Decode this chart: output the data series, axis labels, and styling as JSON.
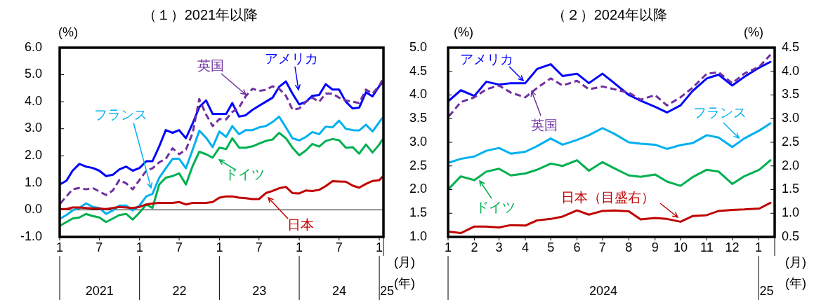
{
  "chart_data": [
    {
      "type": "line",
      "title": "（１）2021年以降",
      "ylabel": "(%)",
      "xlabel": "(月)",
      "x": [
        "2021-01-04",
        "2021-02-01",
        "2021-03-01",
        "2021-04-01",
        "2021-05-01",
        "2021-06-01",
        "2021-07-01",
        "2021-08-01",
        "2021-09-01",
        "2021-10-01",
        "2021-11-01",
        "2021-12-01",
        "2022-01-01",
        "2022-02-01",
        "2022-03-01",
        "2022-04-01",
        "2022-05-01",
        "2022-06-01",
        "2022-07-01",
        "2022-08-01",
        "2022-09-01",
        "2022-10-01",
        "2022-11-01",
        "2022-12-01",
        "2023-01-01",
        "2023-02-01",
        "2023-03-01",
        "2023-04-01",
        "2023-05-01",
        "2023-06-01",
        "2023-07-01",
        "2023-08-01",
        "2023-09-01",
        "2023-10-01",
        "2023-11-01",
        "2023-12-01",
        "2024-01-01",
        "2024-02-01",
        "2024-03-01",
        "2024-04-01",
        "2024-05-01",
        "2024-06-01",
        "2024-07-01",
        "2024-08-01",
        "2024-09-01",
        "2024-10-01",
        "2024-11-01",
        "2024-12-01",
        "2025-01-01",
        "2025-01-15"
      ],
      "xlim": [
        "2021-01-01",
        "2025-01-20"
      ],
      "xticks": [
        {
          "value": "2021-01-01",
          "label": "1"
        },
        {
          "value": "2021-07-01",
          "label": "7"
        },
        {
          "value": "2022-01-01",
          "label": "1"
        },
        {
          "value": "2022-07-01",
          "label": "7"
        },
        {
          "value": "2023-01-01",
          "label": "1"
        },
        {
          "value": "2023-07-01",
          "label": "7"
        },
        {
          "value": "2024-01-01",
          "label": "1"
        },
        {
          "value": "2024-07-01",
          "label": "7"
        },
        {
          "value": "2025-01-01",
          "label": "1"
        }
      ],
      "ylim": [
        -1,
        6
      ],
      "yticks": [
        {
          "value": -1,
          "label": "-1.0"
        },
        {
          "value": 0,
          "label": "0.0"
        },
        {
          "value": 1,
          "label": "1.0"
        },
        {
          "value": 2,
          "label": "2.0"
        },
        {
          "value": 3,
          "label": "3.0"
        },
        {
          "value": 4,
          "label": "4.0"
        },
        {
          "value": 5,
          "label": "5.0"
        },
        {
          "value": 6,
          "label": "6.0"
        }
      ],
      "ref_lines": [
        {
          "axis": "y",
          "value": 0,
          "color": "#000000"
        }
      ],
      "series": [
        {
          "name": "アメリカ",
          "color": "#0000ff",
          "values": [
            0.95,
            1.08,
            1.45,
            1.7,
            1.6,
            1.55,
            1.45,
            1.25,
            1.3,
            1.5,
            1.6,
            1.45,
            1.55,
            1.8,
            1.8,
            2.35,
            2.95,
            2.85,
            2.95,
            2.65,
            3.2,
            3.8,
            4.05,
            3.55,
            3.55,
            3.55,
            3.95,
            3.45,
            3.5,
            3.7,
            3.85,
            4.0,
            4.15,
            4.55,
            4.75,
            4.3,
            3.9,
            4.0,
            4.22,
            4.25,
            4.65,
            4.45,
            4.45,
            4.0,
            3.75,
            3.78,
            4.35,
            4.2,
            4.58,
            4.7
          ]
        },
        {
          "name": "英国",
          "color": "#7030a0",
          "line_style": "dashed",
          "values": [
            0.24,
            0.5,
            0.76,
            0.81,
            0.76,
            0.81,
            0.68,
            0.55,
            0.72,
            1.11,
            0.98,
            0.76,
            1.11,
            1.45,
            1.54,
            1.76,
            1.89,
            2.28,
            2.06,
            2.23,
            2.85,
            4.1,
            3.53,
            3.1,
            3.36,
            3.35,
            3.62,
            3.79,
            4.2,
            4.48,
            4.4,
            4.44,
            4.57,
            4.48,
            4.22,
            3.71,
            3.75,
            4.0,
            4.15,
            4.0,
            4.3,
            4.3,
            4.15,
            4.05,
            4.0,
            3.95,
            4.45,
            4.3,
            4.6,
            4.8
          ]
        },
        {
          "name": "フランス",
          "color": "#00b0f0",
          "values": [
            -0.32,
            -0.19,
            -0.02,
            0.07,
            0.24,
            0.11,
            0.07,
            -0.15,
            -0.02,
            0.16,
            0.16,
            -0.02,
            0.16,
            0.5,
            0.59,
            1.19,
            1.54,
            1.89,
            1.89,
            1.54,
            2.23,
            2.93,
            2.67,
            2.32,
            2.9,
            2.7,
            3.1,
            2.8,
            2.95,
            2.95,
            3.05,
            3.1,
            3.25,
            3.45,
            3.05,
            2.65,
            2.57,
            2.7,
            2.88,
            2.8,
            3.08,
            3.05,
            3.3,
            3.0,
            2.95,
            2.94,
            3.15,
            2.9,
            3.25,
            3.4
          ]
        },
        {
          "name": "ドイツ",
          "color": "#00b050",
          "values": [
            -0.58,
            -0.45,
            -0.32,
            -0.28,
            -0.15,
            -0.23,
            -0.28,
            -0.45,
            -0.32,
            -0.19,
            -0.15,
            -0.36,
            -0.1,
            0.2,
            0.07,
            0.94,
            1.19,
            1.25,
            1.35,
            0.94,
            1.63,
            2.15,
            2.06,
            1.93,
            2.3,
            2.25,
            2.65,
            2.3,
            2.3,
            2.35,
            2.45,
            2.55,
            2.6,
            2.85,
            2.65,
            2.3,
            2.02,
            2.2,
            2.44,
            2.34,
            2.55,
            2.62,
            2.58,
            2.3,
            2.32,
            2.08,
            2.42,
            2.12,
            2.42,
            2.6
          ]
        },
        {
          "name": "日本",
          "color": "#c00000",
          "values": [
            0.03,
            0.03,
            0.09,
            0.09,
            0.07,
            0.05,
            0.05,
            0.03,
            0.07,
            0.11,
            0.09,
            0.07,
            0.11,
            0.2,
            0.24,
            0.26,
            0.26,
            0.26,
            0.29,
            0.2,
            0.26,
            0.26,
            0.26,
            0.29,
            0.45,
            0.5,
            0.5,
            0.45,
            0.43,
            0.4,
            0.4,
            0.62,
            0.7,
            0.8,
            0.85,
            0.62,
            0.61,
            0.72,
            0.7,
            0.74,
            0.88,
            1.06,
            1.05,
            1.04,
            0.9,
            0.82,
            0.96,
            1.07,
            1.1,
            1.22
          ]
        }
      ],
      "legend": "right",
      "annotations": [
        "2021",
        "22",
        "23",
        "24",
        "25",
        "(年)"
      ]
    },
    {
      "type": "line",
      "title": "（２）2024年以降",
      "ylabel": "(%)",
      "y2label": "(%)",
      "xlabel": "(月)",
      "x": [
        "2024-01-02",
        "2024-01-16",
        "2024-02-01",
        "2024-02-15",
        "2024-03-01",
        "2024-03-15",
        "2024-04-01",
        "2024-04-15",
        "2024-05-01",
        "2024-05-15",
        "2024-06-01",
        "2024-06-15",
        "2024-07-01",
        "2024-07-15",
        "2024-08-01",
        "2024-08-15",
        "2024-09-01",
        "2024-09-15",
        "2024-10-01",
        "2024-10-15",
        "2024-11-01",
        "2024-11-15",
        "2024-12-01",
        "2024-12-15",
        "2025-01-02",
        "2025-01-15"
      ],
      "xlim": [
        "2024-01-01",
        "2025-01-20"
      ],
      "xticks": [
        {
          "value": "2024-01-01",
          "label": "1"
        },
        {
          "value": "2024-02-01",
          "label": "2"
        },
        {
          "value": "2024-03-01",
          "label": "3"
        },
        {
          "value": "2024-04-01",
          "label": "4"
        },
        {
          "value": "2024-05-01",
          "label": "5"
        },
        {
          "value": "2024-06-01",
          "label": "6"
        },
        {
          "value": "2024-07-01",
          "label": "7"
        },
        {
          "value": "2024-08-01",
          "label": "8"
        },
        {
          "value": "2024-09-01",
          "label": "9"
        },
        {
          "value": "2024-10-01",
          "label": "10"
        },
        {
          "value": "2024-11-01",
          "label": "11"
        },
        {
          "value": "2024-12-01",
          "label": "12"
        },
        {
          "value": "2025-01-01",
          "label": "1"
        }
      ],
      "ylim": [
        1,
        5
      ],
      "yticks": [
        {
          "value": 1,
          "label": "1.0"
        },
        {
          "value": 1.5,
          "label": "1.5"
        },
        {
          "value": 2,
          "label": "2.0"
        },
        {
          "value": 2.5,
          "label": "2.5"
        },
        {
          "value": 3,
          "label": "3.0"
        },
        {
          "value": 3.5,
          "label": "3.5"
        },
        {
          "value": 4,
          "label": "4.0"
        },
        {
          "value": 4.5,
          "label": "4.5"
        },
        {
          "value": 5,
          "label": "5.0"
        }
      ],
      "y2lim": [
        0.5,
        4.5
      ],
      "y2ticks": [
        {
          "value": 0.5,
          "label": "0.5"
        },
        {
          "value": 1,
          "label": "1.0"
        },
        {
          "value": 1.5,
          "label": "1.5"
        },
        {
          "value": 2,
          "label": "2.0"
        },
        {
          "value": 2.5,
          "label": "2.5"
        },
        {
          "value": 3,
          "label": "3.0"
        },
        {
          "value": 3.5,
          "label": "3.5"
        },
        {
          "value": 4,
          "label": "4.0"
        },
        {
          "value": 4.5,
          "label": "4.5"
        }
      ],
      "series": [
        {
          "name": "アメリカ",
          "color": "#0000ff",
          "values": [
            3.88,
            4.1,
            3.98,
            4.28,
            4.22,
            4.25,
            4.25,
            4.55,
            4.65,
            4.4,
            4.45,
            4.25,
            4.45,
            4.25,
            4.0,
            3.88,
            3.75,
            3.63,
            3.78,
            4.08,
            4.35,
            4.43,
            4.2,
            4.38,
            4.58,
            4.7
          ]
        },
        {
          "name": "英国",
          "color": "#7030a0",
          "line_style": "dashed",
          "values": [
            3.55,
            3.85,
            3.95,
            4.12,
            4.2,
            4.05,
            3.95,
            4.15,
            4.35,
            4.2,
            4.3,
            4.12,
            4.18,
            4.12,
            4.05,
            3.9,
            4.0,
            3.78,
            3.95,
            4.15,
            4.45,
            4.48,
            4.25,
            4.45,
            4.6,
            4.85
          ]
        },
        {
          "name": "フランス",
          "color": "#00b0f0",
          "values": [
            2.57,
            2.65,
            2.7,
            2.82,
            2.88,
            2.76,
            2.8,
            2.92,
            3.08,
            2.95,
            3.05,
            3.15,
            3.3,
            3.18,
            3.0,
            2.97,
            2.95,
            2.86,
            2.94,
            2.98,
            3.15,
            3.1,
            2.9,
            3.08,
            3.25,
            3.4
          ]
        },
        {
          "name": "ドイツ",
          "color": "#00b050",
          "values": [
            2.02,
            2.28,
            2.2,
            2.38,
            2.44,
            2.3,
            2.34,
            2.42,
            2.55,
            2.5,
            2.62,
            2.4,
            2.58,
            2.45,
            2.3,
            2.27,
            2.32,
            2.17,
            2.08,
            2.26,
            2.42,
            2.38,
            2.12,
            2.28,
            2.42,
            2.62
          ]
        },
        {
          "name": "日本（目盛右）",
          "color": "#c00000",
          "axis": "y2",
          "values": [
            0.61,
            0.58,
            0.72,
            0.72,
            0.7,
            0.75,
            0.74,
            0.85,
            0.88,
            0.93,
            1.06,
            0.97,
            1.05,
            1.06,
            1.04,
            0.87,
            0.9,
            0.88,
            0.82,
            0.94,
            0.96,
            1.05,
            1.07,
            1.08,
            1.1,
            1.22
          ]
        }
      ],
      "legend": "left",
      "annotations": [
        "2024",
        "25",
        "(年)"
      ]
    }
  ]
}
